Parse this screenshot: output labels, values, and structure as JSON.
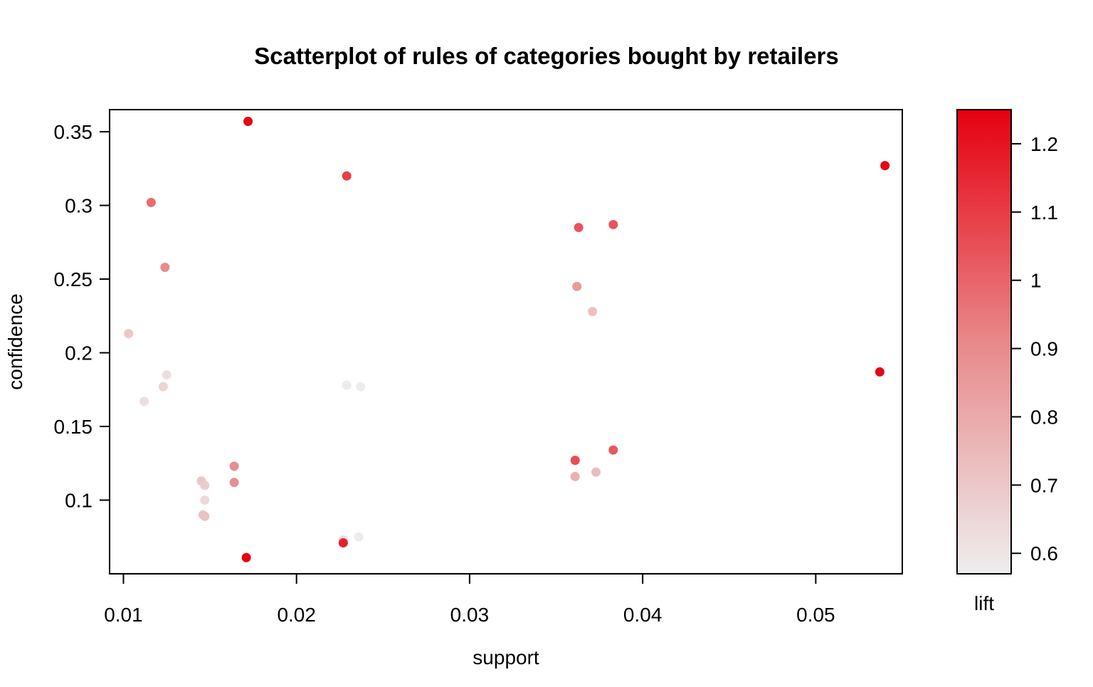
{
  "chart_data": {
    "type": "scatter",
    "title": "Scatterplot of rules of categories bought by retailers",
    "xlabel": "support",
    "ylabel": "confidence",
    "xlim": [
      0.0092,
      0.055
    ],
    "ylim": [
      0.05,
      0.365
    ],
    "xticks": [
      {
        "value": 0.01,
        "label": "0.01"
      },
      {
        "value": 0.02,
        "label": "0.02"
      },
      {
        "value": 0.03,
        "label": "0.03"
      },
      {
        "value": 0.04,
        "label": "0.04"
      },
      {
        "value": 0.05,
        "label": "0.05"
      }
    ],
    "yticks": [
      {
        "value": 0.1,
        "label": "0.1"
      },
      {
        "value": 0.15,
        "label": "0.15"
      },
      {
        "value": 0.2,
        "label": "0.2"
      },
      {
        "value": 0.25,
        "label": "0.25"
      },
      {
        "value": 0.3,
        "label": "0.3"
      },
      {
        "value": 0.35,
        "label": "0.35"
      }
    ],
    "color_scale": {
      "label": "lift",
      "range": [
        0.57,
        1.25
      ],
      "low_color": "#EEEEEE",
      "mid_color": "#E8888A",
      "high_color": "#E60010",
      "ticks": [
        {
          "value": 0.6,
          "label": "0.6"
        },
        {
          "value": 0.7,
          "label": "0.7"
        },
        {
          "value": 0.8,
          "label": "0.8"
        },
        {
          "value": 0.9,
          "label": "0.9"
        },
        {
          "value": 1.0,
          "label": "1"
        },
        {
          "value": 1.1,
          "label": "1.1"
        },
        {
          "value": 1.2,
          "label": "1.2"
        }
      ]
    },
    "points": [
      {
        "support": 0.0172,
        "confidence": 0.357,
        "lift": 1.25
      },
      {
        "support": 0.0229,
        "confidence": 0.32,
        "lift": 1.09
      },
      {
        "support": 0.054,
        "confidence": 0.327,
        "lift": 1.24
      },
      {
        "support": 0.0116,
        "confidence": 0.302,
        "lift": 0.98
      },
      {
        "support": 0.0363,
        "confidence": 0.285,
        "lift": 1.04
      },
      {
        "support": 0.0383,
        "confidence": 0.287,
        "lift": 1.04
      },
      {
        "support": 0.0124,
        "confidence": 0.258,
        "lift": 0.9
      },
      {
        "support": 0.0362,
        "confidence": 0.245,
        "lift": 0.85
      },
      {
        "support": 0.0371,
        "confidence": 0.228,
        "lift": 0.72
      },
      {
        "support": 0.0103,
        "confidence": 0.213,
        "lift": 0.7
      },
      {
        "support": 0.0537,
        "confidence": 0.187,
        "lift": 1.24
      },
      {
        "support": 0.0125,
        "confidence": 0.185,
        "lift": 0.62
      },
      {
        "support": 0.0123,
        "confidence": 0.177,
        "lift": 0.66
      },
      {
        "support": 0.0229,
        "confidence": 0.178,
        "lift": 0.58
      },
      {
        "support": 0.0237,
        "confidence": 0.177,
        "lift": 0.58
      },
      {
        "support": 0.0112,
        "confidence": 0.167,
        "lift": 0.62
      },
      {
        "support": 0.0383,
        "confidence": 0.134,
        "lift": 1.03
      },
      {
        "support": 0.0361,
        "confidence": 0.127,
        "lift": 1.06
      },
      {
        "support": 0.0373,
        "confidence": 0.119,
        "lift": 0.74
      },
      {
        "support": 0.0361,
        "confidence": 0.116,
        "lift": 0.78
      },
      {
        "support": 0.0164,
        "confidence": 0.123,
        "lift": 0.89
      },
      {
        "support": 0.0164,
        "confidence": 0.112,
        "lift": 0.89
      },
      {
        "support": 0.0145,
        "confidence": 0.113,
        "lift": 0.7
      },
      {
        "support": 0.0147,
        "confidence": 0.11,
        "lift": 0.68
      },
      {
        "support": 0.0147,
        "confidence": 0.1,
        "lift": 0.64
      },
      {
        "support": 0.0146,
        "confidence": 0.09,
        "lift": 0.72
      },
      {
        "support": 0.0147,
        "confidence": 0.089,
        "lift": 0.72
      },
      {
        "support": 0.0227,
        "confidence": 0.073,
        "lift": 0.62
      },
      {
        "support": 0.0236,
        "confidence": 0.075,
        "lift": 0.58
      },
      {
        "support": 0.0227,
        "confidence": 0.071,
        "lift": 1.17
      },
      {
        "support": 0.0171,
        "confidence": 0.061,
        "lift": 1.25
      }
    ],
    "grid": false,
    "legend": "colorbar-right"
  }
}
